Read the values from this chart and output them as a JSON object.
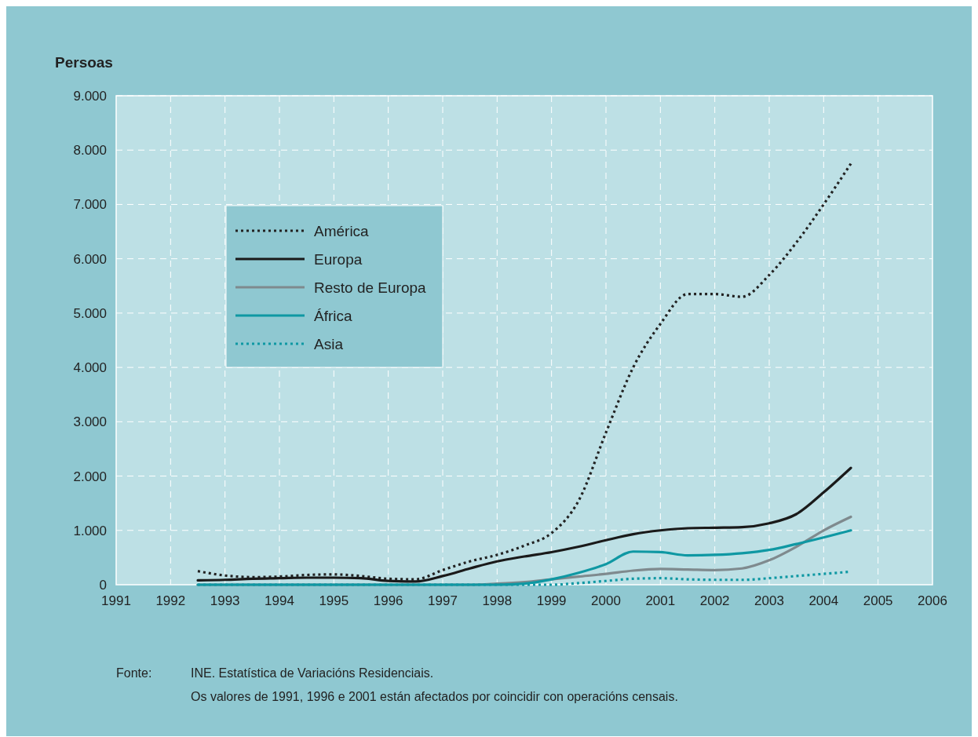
{
  "chart_data": {
    "type": "line",
    "ylabel": "Persoas",
    "x": [
      1992.5,
      1993,
      1993.5,
      1994,
      1994.5,
      1995,
      1995.5,
      1996,
      1996.5,
      1997,
      1997.5,
      1998,
      1998.5,
      1999,
      1999.5,
      2000,
      2000.5,
      2001,
      2001.5,
      2002,
      2002.5,
      2003,
      2003.5,
      2004,
      2004.5
    ],
    "series": [
      {
        "name": "América",
        "color": "#222222",
        "line_style": "dotted",
        "values": [
          250,
          170,
          140,
          150,
          180,
          190,
          160,
          110,
          100,
          270,
          430,
          550,
          720,
          950,
          1550,
          2800,
          4000,
          4800,
          5350,
          5350,
          5300,
          5700,
          6300,
          7000,
          7750
        ]
      },
      {
        "name": "Europa",
        "color": "#1a1a1a",
        "line_style": "solid",
        "values": [
          80,
          90,
          110,
          120,
          130,
          130,
          120,
          70,
          60,
          160,
          300,
          430,
          520,
          600,
          700,
          820,
          930,
          1000,
          1040,
          1050,
          1060,
          1130,
          1300,
          1700,
          2150
        ]
      },
      {
        "name": "Resto de Europa",
        "color": "#7f8a8e",
        "line_style": "solid",
        "values": [
          0,
          0,
          0,
          0,
          0,
          0,
          0,
          0,
          0,
          0,
          0,
          20,
          50,
          100,
          150,
          200,
          260,
          290,
          280,
          270,
          300,
          450,
          700,
          1000,
          1250
        ]
      },
      {
        "name": "África",
        "color": "#0f98a3",
        "line_style": "solid",
        "values": [
          0,
          0,
          0,
          0,
          0,
          0,
          0,
          0,
          0,
          0,
          0,
          0,
          20,
          100,
          220,
          380,
          610,
          600,
          540,
          550,
          580,
          640,
          750,
          870,
          1000
        ]
      },
      {
        "name": "Asia",
        "color": "#0f98a3",
        "line_style": "dotted",
        "values": [
          0,
          0,
          0,
          0,
          0,
          0,
          0,
          0,
          0,
          0,
          0,
          0,
          0,
          0,
          30,
          70,
          110,
          120,
          100,
          90,
          90,
          120,
          160,
          200,
          240
        ]
      }
    ],
    "xlim": [
      1991,
      2006
    ],
    "xticks": [
      1991,
      1992,
      1993,
      1994,
      1995,
      1996,
      1997,
      1998,
      1999,
      2000,
      2001,
      2002,
      2003,
      2004,
      2005,
      2006
    ],
    "ylim": [
      0,
      9000
    ],
    "yticks": [
      0,
      {
        "value": 1000,
        "label": "1.000"
      },
      {
        "value": 2000,
        "label": "2.000"
      },
      {
        "value": 3000,
        "label": "3.000"
      },
      {
        "value": 4000,
        "label": "4.000"
      },
      {
        "value": 5000,
        "label": "5.000"
      },
      {
        "value": 6000,
        "label": "6.000"
      },
      {
        "value": 7000,
        "label": "7.000"
      },
      {
        "value": 8000,
        "label": "8.000"
      },
      {
        "value": 9000,
        "label": "9.000"
      }
    ],
    "grid": true,
    "legend": "top left",
    "annotations": [
      "Fonte:",
      "INE. Estatística de Variacións Residenciais.",
      "Os valores de 1991, 1996 e 2001 están afectados por coincidir con operacións censais."
    ]
  }
}
